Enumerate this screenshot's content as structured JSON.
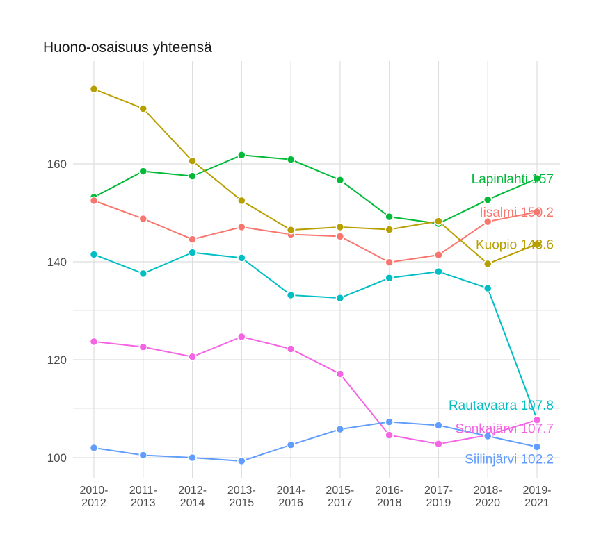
{
  "chart_data": {
    "type": "line",
    "title": "Huono-osaisuus yhteensä",
    "xlabel": "",
    "ylabel": "",
    "categories": [
      "2010-2012",
      "2011-2013",
      "2012-2014",
      "2013-2015",
      "2014-2016",
      "2015-2017",
      "2016-2018",
      "2017-2019",
      "2018-2020",
      "2019-2021"
    ],
    "ylim": [
      95,
      178
    ],
    "yticks": [
      100,
      120,
      140,
      160
    ],
    "grid": true,
    "legend": "none (direct end labels)",
    "series": [
      {
        "name": "Lapinlahti",
        "color": "#00BA38",
        "values": [
          153.2,
          158.5,
          157.5,
          161.8,
          160.9,
          156.7,
          149.2,
          147.8,
          152.7,
          157.0
        ],
        "end_label": "Lapinlahti 157"
      },
      {
        "name": "Iisalmi",
        "color": "#F8766D",
        "values": [
          152.5,
          148.8,
          144.6,
          147.1,
          145.6,
          145.2,
          139.9,
          141.4,
          148.2,
          150.2
        ],
        "end_label": "Iisalmi 150.2"
      },
      {
        "name": "Kuopio",
        "color": "#B79F00",
        "values": [
          175.3,
          171.3,
          160.6,
          152.5,
          146.5,
          147.1,
          146.6,
          148.3,
          139.6,
          143.6
        ],
        "end_label": "Kuopio 143.6"
      },
      {
        "name": "Rautavaara",
        "color": "#00BFC4",
        "values": [
          141.5,
          137.6,
          141.9,
          140.8,
          133.2,
          132.6,
          136.7,
          138.0,
          134.6,
          107.8
        ],
        "end_label": "Rautavaara 107.8"
      },
      {
        "name": "Sonkajärvi",
        "color": "#F564E3",
        "values": [
          123.7,
          122.6,
          120.6,
          124.7,
          122.2,
          117.1,
          104.6,
          102.8,
          104.6,
          107.7
        ],
        "end_label": "Sonkajärvi 107.7"
      },
      {
        "name": "Siilinjärvi",
        "color": "#619CFF",
        "values": [
          102.0,
          100.5,
          100.0,
          99.3,
          102.6,
          105.8,
          107.3,
          106.6,
          104.4,
          102.2
        ],
        "end_label": "Siilinjärvi 102.2"
      }
    ]
  }
}
